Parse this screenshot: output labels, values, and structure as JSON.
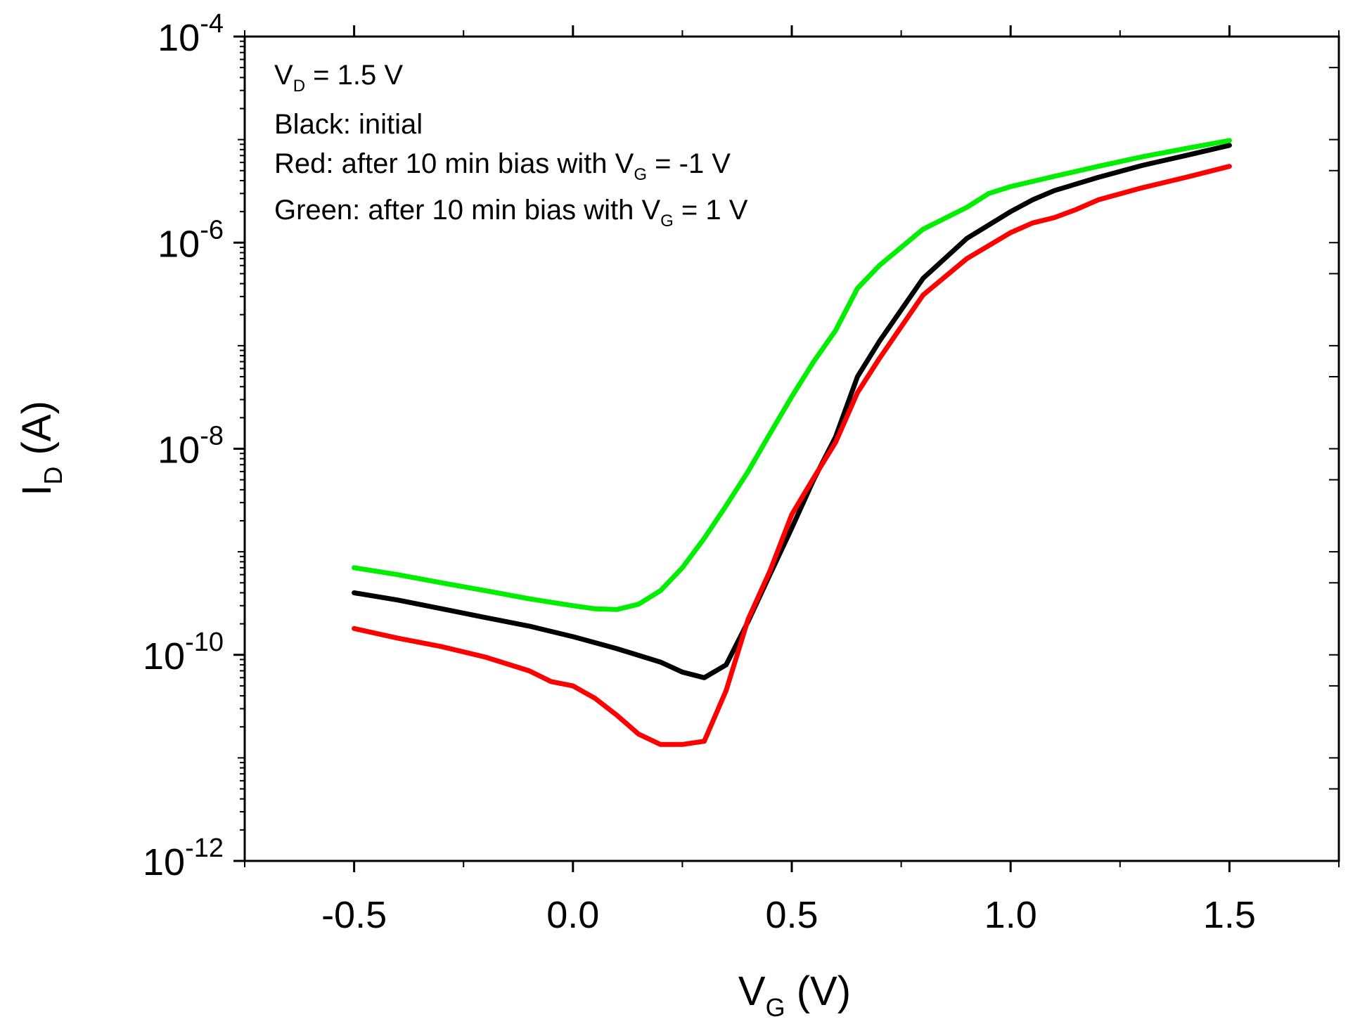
{
  "chart_data": {
    "type": "line",
    "x_scale": "linear",
    "y_scale": "log",
    "xlim": [
      -0.75,
      1.75
    ],
    "ylim": [
      1e-12,
      0.0001
    ],
    "xticks": [
      -0.5,
      0.0,
      0.5,
      1.0,
      1.5
    ],
    "xtick_labels": [
      "-0.5",
      "0.0",
      "0.5",
      "1.0",
      "1.5"
    ],
    "yticks": [
      {
        "base": "10",
        "exp": "-4",
        "value": 0.0001
      },
      {
        "base": "10",
        "exp": "-6",
        "value": 1e-06
      },
      {
        "base": "10",
        "exp": "-8",
        "value": 1e-08
      },
      {
        "base": "10",
        "exp": "-10",
        "value": 1e-10
      },
      {
        "base": "10",
        "exp": "-12",
        "value": 1e-12
      }
    ],
    "xlabel": {
      "main": "V",
      "sub": "G",
      "rest": " (V)"
    },
    "ylabel": {
      "main": "I",
      "sub": "D",
      "rest": " (A)"
    },
    "annotations": [
      {
        "main": "V",
        "sub": "D",
        "rest": " = 1.5 V"
      },
      {
        "main": "Black: initial",
        "sub": "",
        "rest": ""
      },
      {
        "main": "Red: after 10 min bias with V",
        "sub": "G",
        "rest": " = -1 V"
      },
      {
        "main": "Green: after 10 min bias with V",
        "sub": "G",
        "rest": " = 1 V"
      }
    ],
    "series": [
      {
        "name": "Black: initial",
        "color": "#000000",
        "x": [
          -0.5,
          -0.4,
          -0.3,
          -0.2,
          -0.1,
          0.0,
          0.1,
          0.2,
          0.25,
          0.3,
          0.35,
          0.4,
          0.45,
          0.5,
          0.55,
          0.6,
          0.65,
          0.7,
          0.8,
          0.9,
          1.0,
          1.05,
          1.1,
          1.2,
          1.3,
          1.4,
          1.5
        ],
        "y": [
          4e-10,
          3.4e-10,
          2.8e-10,
          2.3e-10,
          1.9e-10,
          1.5e-10,
          1.15e-10,
          8.5e-11,
          6.8e-11,
          6e-11,
          8e-11,
          2.1e-10,
          6e-10,
          1.7e-09,
          5e-09,
          1.3e-08,
          5e-08,
          1.1e-07,
          4.5e-07,
          1.1e-06,
          2e-06,
          2.6e-06,
          3.2e-06,
          4.3e-06,
          5.6e-06,
          7e-06,
          8.8e-06
        ]
      },
      {
        "name": "Red: after 10 min bias with V_G = -1 V",
        "color": "#ff0000",
        "x": [
          -0.5,
          -0.4,
          -0.3,
          -0.2,
          -0.1,
          -0.05,
          0.0,
          0.05,
          0.1,
          0.15,
          0.2,
          0.25,
          0.3,
          0.35,
          0.4,
          0.45,
          0.5,
          0.55,
          0.6,
          0.65,
          0.7,
          0.8,
          0.9,
          1.0,
          1.05,
          1.1,
          1.15,
          1.2,
          1.3,
          1.4,
          1.5
        ],
        "y": [
          1.8e-10,
          1.45e-10,
          1.2e-10,
          9.5e-11,
          7e-11,
          5.5e-11,
          5e-11,
          3.8e-11,
          2.6e-11,
          1.7e-11,
          1.35e-11,
          1.35e-11,
          1.45e-11,
          4.5e-11,
          2.2e-10,
          6.5e-10,
          2.3e-09,
          5.2e-09,
          1.15e-08,
          3.5e-08,
          7.5e-08,
          3.1e-07,
          7e-07,
          1.25e-06,
          1.55e-06,
          1.75e-06,
          2.1e-06,
          2.6e-06,
          3.4e-06,
          4.3e-06,
          5.5e-06
        ]
      },
      {
        "name": "Green: after 10 min bias with V_G = 1 V",
        "color": "#00ee00",
        "x": [
          -0.5,
          -0.4,
          -0.3,
          -0.2,
          -0.1,
          0.0,
          0.05,
          0.1,
          0.15,
          0.2,
          0.25,
          0.3,
          0.35,
          0.4,
          0.45,
          0.5,
          0.55,
          0.6,
          0.65,
          0.7,
          0.8,
          0.9,
          0.95,
          1.0,
          1.1,
          1.2,
          1.3,
          1.4,
          1.5
        ],
        "y": [
          7e-10,
          6e-10,
          5e-10,
          4.2e-10,
          3.5e-10,
          3e-10,
          2.8e-10,
          2.75e-10,
          3.1e-10,
          4.2e-10,
          7e-10,
          1.35e-09,
          2.8e-09,
          6e-09,
          1.4e-08,
          3.2e-08,
          7e-08,
          1.4e-07,
          3.6e-07,
          6e-07,
          1.35e-06,
          2.2e-06,
          3e-06,
          3.5e-06,
          4.4e-06,
          5.5e-06,
          6.8e-06,
          8.2e-06,
          9.8e-06
        ]
      }
    ]
  }
}
